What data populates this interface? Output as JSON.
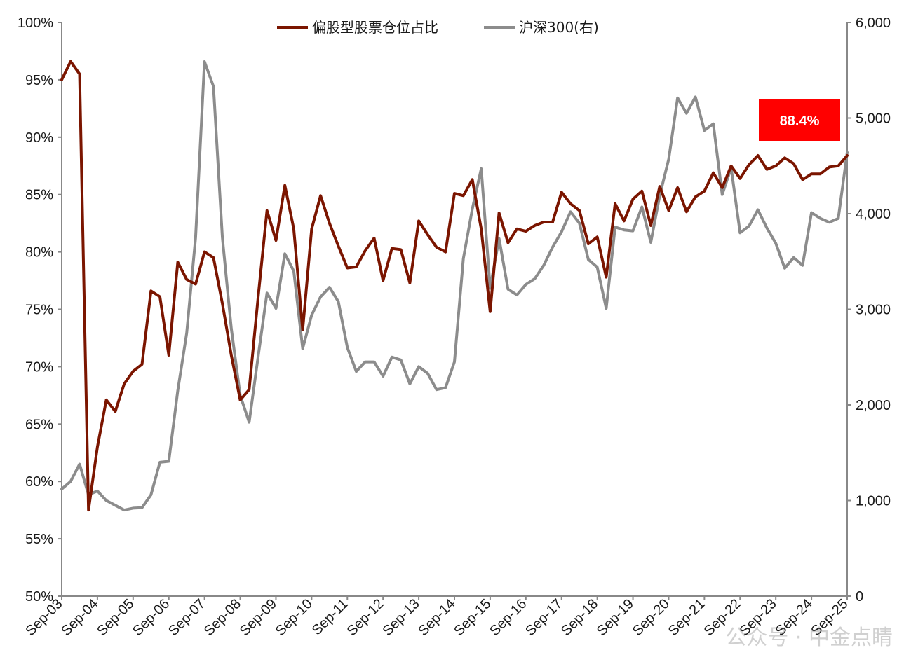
{
  "chart_data": {
    "type": "line",
    "title": "",
    "x_dates": [
      "2003-09",
      "2003-12",
      "2004-03",
      "2004-06",
      "2004-09",
      "2004-12",
      "2005-03",
      "2005-06",
      "2005-09",
      "2005-12",
      "2006-03",
      "2006-06",
      "2006-09",
      "2006-12",
      "2007-03",
      "2007-06",
      "2007-09",
      "2007-12",
      "2008-03",
      "2008-06",
      "2008-09",
      "2008-12",
      "2009-03",
      "2009-06",
      "2009-09",
      "2009-12",
      "2010-03",
      "2010-06",
      "2010-09",
      "2010-12",
      "2011-03",
      "2011-06",
      "2011-09",
      "2011-12",
      "2012-03",
      "2012-06",
      "2012-09",
      "2012-12",
      "2013-03",
      "2013-06",
      "2013-09",
      "2013-12",
      "2014-03",
      "2014-06",
      "2014-09",
      "2014-12",
      "2015-03",
      "2015-06",
      "2015-09",
      "2015-12",
      "2016-03",
      "2016-06",
      "2016-09",
      "2016-12",
      "2017-03",
      "2017-06",
      "2017-09",
      "2017-12",
      "2018-03",
      "2018-06",
      "2018-09",
      "2018-12",
      "2019-03",
      "2019-06",
      "2019-09",
      "2019-12",
      "2020-03",
      "2020-06",
      "2020-09",
      "2020-12",
      "2021-03",
      "2021-06",
      "2021-09",
      "2021-12",
      "2022-03",
      "2022-06",
      "2022-09",
      "2022-12",
      "2023-03",
      "2023-06",
      "2023-09",
      "2023-12",
      "2024-03",
      "2024-06",
      "2024-09",
      "2024-12",
      "2025-03",
      "2025-06",
      "2025-09"
    ],
    "x_tick_labels": [
      "Sep-03",
      "Sep-04",
      "Sep-05",
      "Sep-06",
      "Sep-07",
      "Sep-08",
      "Sep-09",
      "Sep-10",
      "Sep-11",
      "Sep-12",
      "Sep-13",
      "Sep-14",
      "Sep-15",
      "Sep-16",
      "Sep-17",
      "Sep-18",
      "Sep-19",
      "Sep-20",
      "Sep-21",
      "Sep-22",
      "Sep-23",
      "Sep-24",
      "Sep-25"
    ],
    "x_range": [
      "2003-09",
      "2025-09"
    ],
    "y_left": {
      "range": [
        50,
        100
      ],
      "tick_labels": [
        "100%",
        "95%",
        "90%",
        "85%",
        "80%",
        "75%",
        "70%",
        "65%",
        "60%",
        "55%",
        "50%"
      ]
    },
    "y_right": {
      "range": [
        0,
        6000
      ],
      "tick_labels": [
        "6,000",
        "5,000",
        "4,000",
        "3,000",
        "2,000",
        "1,000",
        "0"
      ]
    },
    "series": [
      {
        "name": "偏股型股票仓位占比",
        "axis": "left",
        "color": "#7b1500",
        "values": [
          95.0,
          96.6,
          95.5,
          57.5,
          63.0,
          67.1,
          66.1,
          68.5,
          69.6,
          70.2,
          76.6,
          76.1,
          71.0,
          79.1,
          77.6,
          77.2,
          80.0,
          79.5,
          75.5,
          71.0,
          67.1,
          68.0,
          76.0,
          83.6,
          81.0,
          85.8,
          82.0,
          73.2,
          82.0,
          84.9,
          82.5,
          80.5,
          78.6,
          78.7,
          80.1,
          81.2,
          77.5,
          80.3,
          80.2,
          77.3,
          82.7,
          81.5,
          80.4,
          80.0,
          85.1,
          84.9,
          86.3,
          82.0,
          74.8,
          83.4,
          80.8,
          82.0,
          81.8,
          82.3,
          82.6,
          82.6,
          85.2,
          84.2,
          83.6,
          80.7,
          81.3,
          77.8,
          84.2,
          82.7,
          84.6,
          85.3,
          82.3,
          85.7,
          83.6,
          85.6,
          83.5,
          84.8,
          85.3,
          86.9,
          85.6,
          87.5,
          86.4,
          87.6,
          88.4,
          87.2,
          87.5,
          88.2,
          87.7,
          86.3,
          86.8,
          86.8,
          87.4,
          87.5,
          88.4
        ]
      },
      {
        "name": "沪深300(右)",
        "axis": "right",
        "color": "#8c8c8c",
        "values": [
          1120,
          1200,
          1380,
          1060,
          1100,
          1000,
          950,
          900,
          920,
          925,
          1060,
          1400,
          1410,
          2150,
          2750,
          3750,
          5590,
          5330,
          3750,
          2800,
          2100,
          1820,
          2500,
          3170,
          3010,
          3580,
          3400,
          2590,
          2940,
          3130,
          3230,
          3080,
          2600,
          2350,
          2450,
          2450,
          2300,
          2500,
          2470,
          2220,
          2400,
          2330,
          2160,
          2180,
          2450,
          3530,
          4050,
          4470,
          3220,
          3740,
          3210,
          3150,
          3260,
          3320,
          3460,
          3650,
          3810,
          4020,
          3900,
          3520,
          3440,
          3010,
          3860,
          3830,
          3820,
          4070,
          3700,
          4190,
          4570,
          5210,
          5050,
          5220,
          4870,
          4940,
          4200,
          4480,
          3800,
          3870,
          4040,
          3850,
          3690,
          3430,
          3540,
          3460,
          4010,
          3950,
          3910,
          3950,
          4640
        ]
      }
    ],
    "annotation": {
      "text": "88.4%",
      "color": "#ff0000"
    },
    "legend": {
      "position": "top-center"
    },
    "grid": false
  },
  "watermark": "公众号 · 中金点睛"
}
